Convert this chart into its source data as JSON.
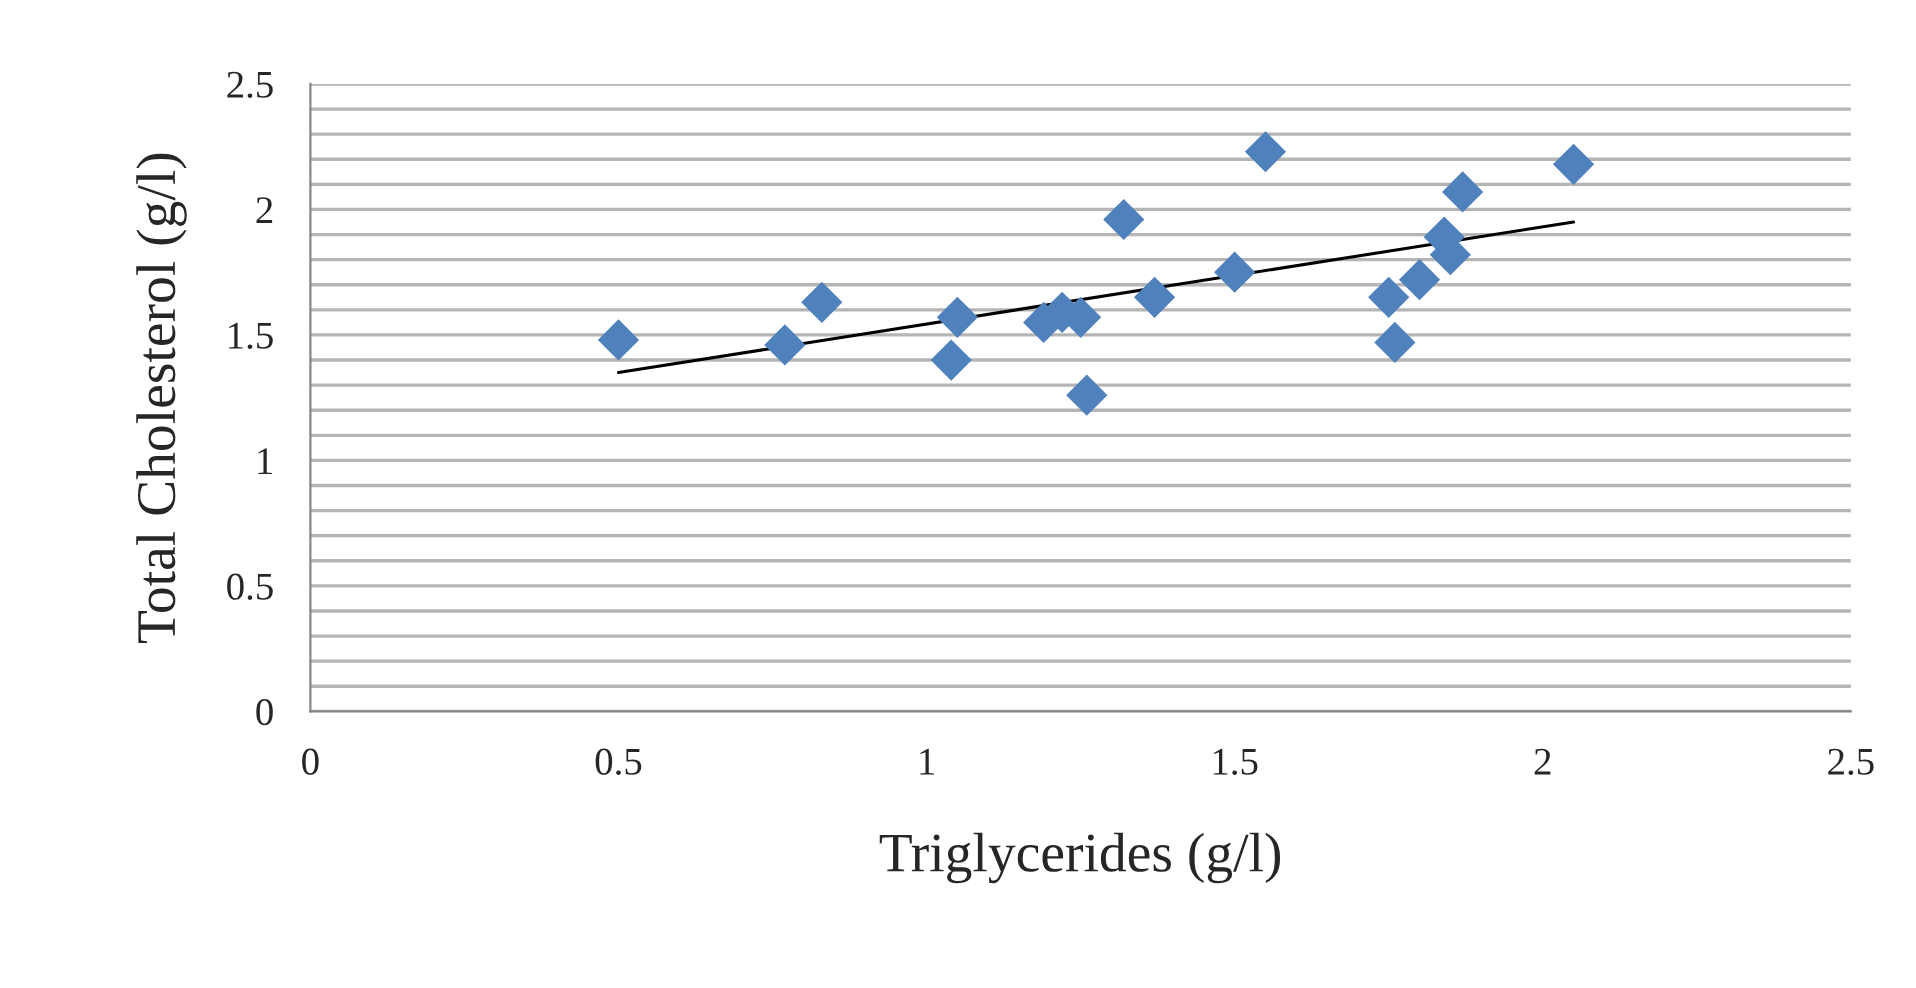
{
  "chart_data": {
    "type": "scatter",
    "xlabel": "Triglycerides (g/l)",
    "ylabel": "Total Cholesterol (g/l)",
    "series": [
      {
        "color": "#4f81bd",
        "marker": "diamond",
        "x": [
          0.5,
          0.77,
          0.83,
          1.04,
          1.05,
          1.19,
          1.22,
          1.25,
          1.26,
          1.32,
          1.37,
          1.5,
          1.55,
          1.75,
          1.76,
          1.8,
          1.84,
          1.85,
          1.87,
          2.05
        ],
        "values": [
          1.48,
          1.46,
          1.63,
          1.4,
          1.57,
          1.55,
          1.59,
          1.57,
          1.26,
          1.96,
          1.65,
          1.75,
          2.23,
          1.65,
          1.47,
          1.72,
          1.89,
          1.82,
          2.07,
          2.18
        ]
      },
      {
        "type": "line",
        "color": "#000000",
        "x": [
          0.5,
          2.05
        ],
        "values": [
          1.35,
          1.95
        ]
      }
    ],
    "xlim": [
      0,
      2.5
    ],
    "xticks": [
      0,
      0.5,
      1,
      1.5,
      2,
      2.5
    ],
    "ylim": [
      0,
      2.5
    ],
    "yticks": [
      0,
      {
        "value": 0.1,
        "label": null
      },
      {
        "value": 0.2,
        "label": null
      },
      {
        "value": 0.3,
        "label": null
      },
      {
        "value": 0.4,
        "label": null
      },
      0.5,
      {
        "value": 0.6,
        "label": null
      },
      {
        "value": 0.7,
        "label": null
      },
      {
        "value": 0.8,
        "label": null
      },
      {
        "value": 0.9,
        "label": null
      },
      1,
      {
        "value": 1.1,
        "label": null
      },
      {
        "value": 1.2,
        "label": null
      },
      {
        "value": 1.3,
        "label": null
      },
      {
        "value": 1.4,
        "label": null
      },
      1.5,
      {
        "value": 1.6,
        "label": null
      },
      {
        "value": 1.7,
        "label": null
      },
      {
        "value": 1.8,
        "label": null
      },
      {
        "value": 1.9,
        "label": null
      },
      2,
      {
        "value": 2.1,
        "label": null
      },
      {
        "value": 2.2,
        "label": null
      },
      {
        "value": 2.3,
        "label": null
      },
      {
        "value": 2.4,
        "label": null
      },
      2.5
    ],
    "grid": "y"
  }
}
